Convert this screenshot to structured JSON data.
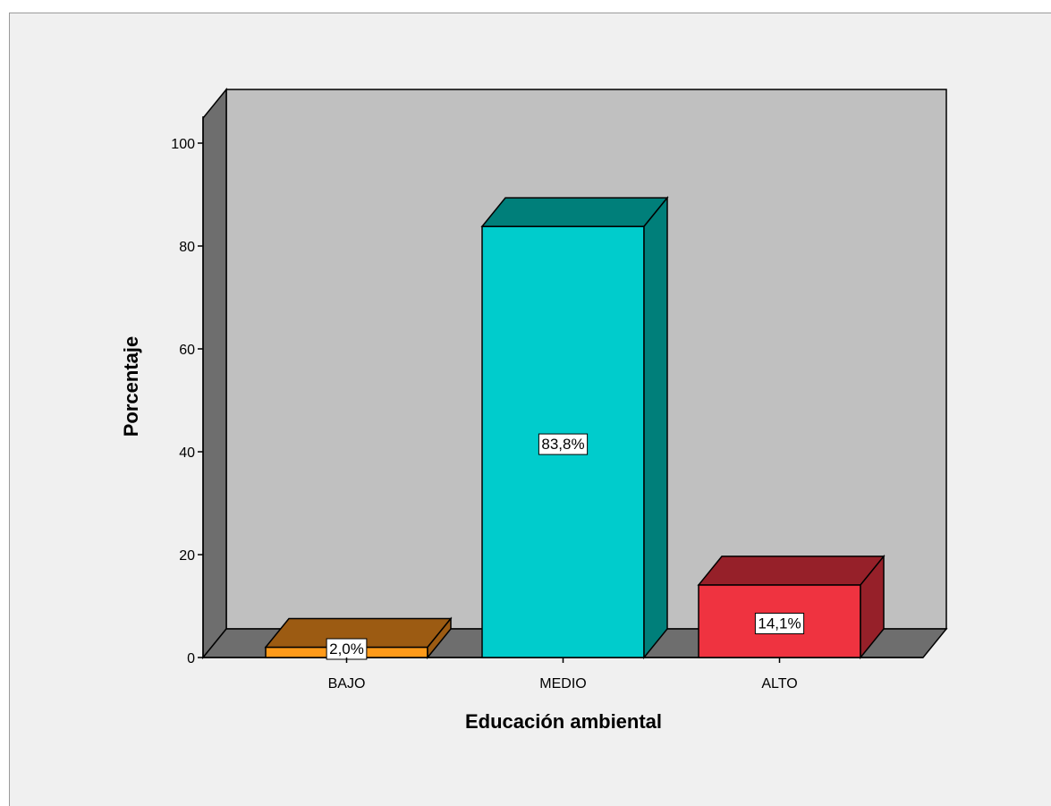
{
  "chart_data": {
    "type": "bar",
    "xlabel": "Educación ambiental",
    "ylabel": "Porcentaje",
    "ylim": [
      0,
      100
    ],
    "yticks": [
      "0",
      "20",
      "40",
      "60",
      "80",
      "100"
    ],
    "categories": [
      "BAJO",
      "MEDIO",
      "ALTO"
    ],
    "values": [
      2.0,
      83.8,
      14.1
    ],
    "value_labels": [
      "2,0%",
      "83,8%",
      "14,1%"
    ],
    "colors": {
      "BAJO": {
        "front": "#ff9a1a",
        "top": "#9c5b12",
        "side": "#9c5b12"
      },
      "MEDIO": {
        "front": "#00cccc",
        "top": "#007f7a",
        "side": "#007f7a"
      },
      "ALTO": {
        "front": "#ef3340",
        "top": "#962029",
        "side": "#962029"
      }
    },
    "style": "3d",
    "grid": false,
    "wall_color": "#c0c0c0",
    "side_wall_color": "#6e6e6e",
    "floor_color": "#6e6e6e"
  }
}
